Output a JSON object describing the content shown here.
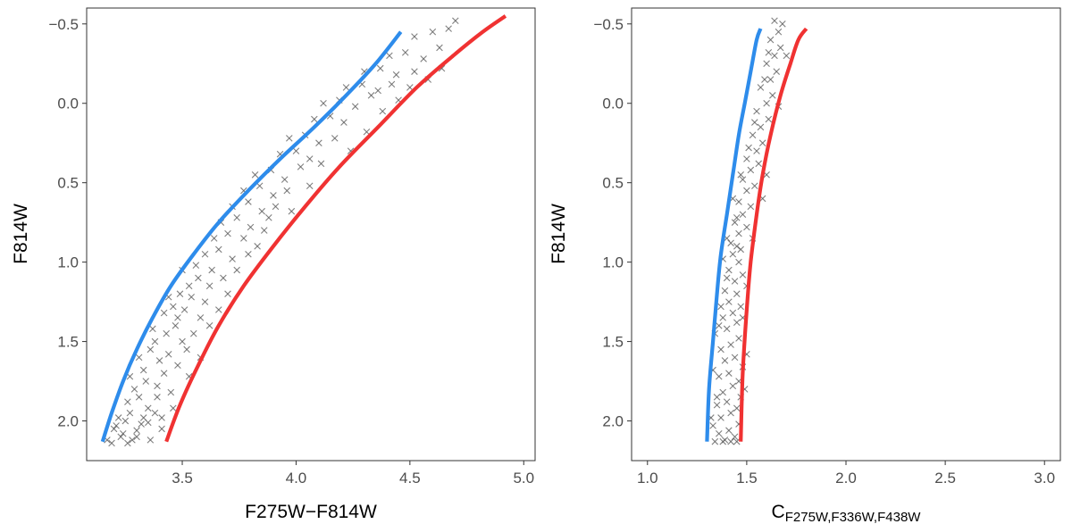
{
  "chart_data": [
    {
      "type": "scatter",
      "xlabel": "F275W−F814W",
      "ylabel": "F814W",
      "xlim": [
        3.08,
        5.05
      ],
      "ylim": [
        -0.6,
        2.25
      ],
      "y_reversed": true,
      "x_ticks": [
        "3.5",
        "4.0",
        "4.5",
        "5.0"
      ],
      "x_tick_values": [
        3.5,
        4.0,
        4.5,
        5.0
      ],
      "y_ticks": [
        "−0.5",
        "0.0",
        "0.5",
        "1.0",
        "1.5",
        "2.0"
      ],
      "y_tick_values": [
        -0.5,
        0.0,
        0.5,
        1.0,
        1.5,
        2.0
      ],
      "series": [
        {
          "name": "blue fiducial",
          "color": "#2e8ceb",
          "kind": "line",
          "x": [
            3.15,
            3.19,
            3.24,
            3.3,
            3.37,
            3.45,
            3.55,
            3.66,
            3.79,
            3.93,
            4.08,
            4.22,
            4.35,
            4.46
          ],
          "y": [
            2.13,
            1.95,
            1.75,
            1.55,
            1.35,
            1.15,
            0.95,
            0.75,
            0.55,
            0.35,
            0.15,
            -0.05,
            -0.25,
            -0.45
          ]
        },
        {
          "name": "red fiducial",
          "color": "#f03232",
          "kind": "line",
          "x": [
            3.43,
            3.49,
            3.57,
            3.66,
            3.77,
            3.9,
            4.04,
            4.19,
            4.36,
            4.53,
            4.69,
            4.82,
            4.92
          ],
          "y": [
            2.13,
            1.9,
            1.65,
            1.4,
            1.15,
            0.9,
            0.65,
            0.4,
            0.15,
            -0.1,
            -0.3,
            -0.45,
            -0.55
          ]
        },
        {
          "name": "stars",
          "color": "#555555",
          "kind": "points",
          "points": [
            [
              3.17,
              2.12
            ],
            [
              3.2,
              2.05
            ],
            [
              3.23,
              2.1
            ],
            [
              3.25,
              2.0
            ],
            [
              3.27,
              1.95
            ],
            [
              3.3,
              2.1
            ],
            [
              3.22,
              1.98
            ],
            [
              3.28,
              2.12
            ],
            [
              3.32,
              2.02
            ],
            [
              3.35,
              1.92
            ],
            [
              3.26,
              1.88
            ],
            [
              3.31,
              1.85
            ],
            [
              3.38,
              1.95
            ],
            [
              3.41,
              2.05
            ],
            [
              3.36,
              2.12
            ],
            [
              3.24,
              2.08
            ],
            [
              3.29,
              1.8
            ],
            [
              3.34,
              1.75
            ],
            [
              3.27,
              1.72
            ],
            [
              3.39,
              1.78
            ],
            [
              3.42,
              1.7
            ],
            [
              3.45,
              1.82
            ],
            [
              3.33,
              1.68
            ],
            [
              3.31,
              1.6
            ],
            [
              3.36,
              1.55
            ],
            [
              3.4,
              1.62
            ],
            [
              3.44,
              1.58
            ],
            [
              3.48,
              1.65
            ],
            [
              3.52,
              1.55
            ],
            [
              3.38,
              1.5
            ],
            [
              3.43,
              1.45
            ],
            [
              3.37,
              1.42
            ],
            [
              3.47,
              1.4
            ],
            [
              3.5,
              1.5
            ],
            [
              3.55,
              1.45
            ],
            [
              3.42,
              1.32
            ],
            [
              3.46,
              1.28
            ],
            [
              3.51,
              1.3
            ],
            [
              3.58,
              1.35
            ],
            [
              3.44,
              1.22
            ],
            [
              3.49,
              1.2
            ],
            [
              3.54,
              1.22
            ],
            [
              3.6,
              1.25
            ],
            [
              3.53,
              1.15
            ],
            [
              3.57,
              1.1
            ],
            [
              3.62,
              1.15
            ],
            [
              3.5,
              1.05
            ],
            [
              3.56,
              1.02
            ],
            [
              3.63,
              1.05
            ],
            [
              3.68,
              1.1
            ],
            [
              3.6,
              0.95
            ],
            [
              3.66,
              0.92
            ],
            [
              3.72,
              0.98
            ],
            [
              3.64,
              0.85
            ],
            [
              3.7,
              0.82
            ],
            [
              3.77,
              0.85
            ],
            [
              3.67,
              0.75
            ],
            [
              3.74,
              0.72
            ],
            [
              3.8,
              0.78
            ],
            [
              3.86,
              0.8
            ],
            [
              3.72,
              0.65
            ],
            [
              3.79,
              0.62
            ],
            [
              3.85,
              0.68
            ],
            [
              3.91,
              0.65
            ],
            [
              3.77,
              0.55
            ],
            [
              3.84,
              0.52
            ],
            [
              3.9,
              0.58
            ],
            [
              3.96,
              0.55
            ],
            [
              3.82,
              0.45
            ],
            [
              3.89,
              0.42
            ],
            [
              3.95,
              0.48
            ],
            [
              4.02,
              0.4
            ],
            [
              3.93,
              0.32
            ],
            [
              4.0,
              0.3
            ],
            [
              4.06,
              0.35
            ],
            [
              3.97,
              0.22
            ],
            [
              4.04,
              0.2
            ],
            [
              4.1,
              0.25
            ],
            [
              4.17,
              0.22
            ],
            [
              4.08,
              0.1
            ],
            [
              4.15,
              0.08
            ],
            [
              4.21,
              0.12
            ],
            [
              4.12,
              0.0
            ],
            [
              4.19,
              -0.02
            ],
            [
              4.26,
              0.02
            ],
            [
              4.33,
              -0.05
            ],
            [
              4.22,
              -0.1
            ],
            [
              4.29,
              -0.12
            ],
            [
              4.36,
              -0.08
            ],
            [
              4.42,
              -0.12
            ],
            [
              4.3,
              -0.2
            ],
            [
              4.37,
              -0.22
            ],
            [
              4.44,
              -0.18
            ],
            [
              4.52,
              -0.2
            ],
            [
              4.41,
              -0.3
            ],
            [
              4.48,
              -0.32
            ],
            [
              4.56,
              -0.28
            ],
            [
              4.63,
              -0.35
            ],
            [
              4.52,
              -0.42
            ],
            [
              4.6,
              -0.45
            ],
            [
              4.67,
              -0.47
            ],
            [
              4.7,
              -0.52
            ],
            [
              3.21,
              2.03
            ],
            [
              3.33,
              1.98
            ],
            [
              3.46,
              1.92
            ],
            [
              3.39,
              1.85
            ],
            [
              3.53,
              1.72
            ],
            [
              3.58,
              1.6
            ],
            [
              3.48,
              1.35
            ],
            [
              3.62,
              1.4
            ],
            [
              3.66,
              1.3
            ],
            [
              3.7,
              1.2
            ],
            [
              3.74,
              1.05
            ],
            [
              3.79,
              0.95
            ],
            [
              3.83,
              0.9
            ],
            [
              3.88,
              0.72
            ],
            [
              3.98,
              0.68
            ],
            [
              4.06,
              0.52
            ],
            [
              4.11,
              0.38
            ],
            [
              4.24,
              0.3
            ],
            [
              4.31,
              0.18
            ],
            [
              4.38,
              0.05
            ],
            [
              4.45,
              -0.02
            ],
            [
              4.5,
              -0.1
            ],
            [
              4.58,
              -0.15
            ],
            [
              4.64,
              -0.22
            ],
            [
              3.19,
              2.14
            ],
            [
              3.26,
              2.14
            ],
            [
              3.3,
              2.06
            ],
            [
              3.35,
              2.01
            ],
            [
              3.41,
              1.98
            ]
          ]
        }
      ]
    },
    {
      "type": "scatter",
      "xlabel_main": "C",
      "xlabel_sub": "F275W,F336W,F438W",
      "ylabel": "F814W",
      "xlim": [
        0.92,
        3.08
      ],
      "ylim": [
        -0.6,
        2.25
      ],
      "y_reversed": true,
      "x_ticks": [
        "1.0",
        "1.5",
        "2.0",
        "2.5",
        "3.0"
      ],
      "x_tick_values": [
        1.0,
        1.5,
        2.0,
        2.5,
        3.0
      ],
      "y_ticks": [
        "−0.5",
        "0.0",
        "0.5",
        "1.0",
        "1.5",
        "2.0"
      ],
      "y_tick_values": [
        -0.5,
        0.0,
        0.5,
        1.0,
        1.5,
        2.0
      ],
      "series": [
        {
          "name": "blue fiducial",
          "color": "#2e8ceb",
          "kind": "line",
          "x": [
            1.3,
            1.31,
            1.33,
            1.35,
            1.37,
            1.4,
            1.43,
            1.46,
            1.49,
            1.52,
            1.55,
            1.57
          ],
          "y": [
            2.13,
            1.8,
            1.5,
            1.2,
            0.95,
            0.7,
            0.45,
            0.2,
            0.0,
            -0.2,
            -0.4,
            -0.47
          ]
        },
        {
          "name": "red fiducial",
          "color": "#f03232",
          "kind": "line",
          "x": [
            1.47,
            1.48,
            1.5,
            1.52,
            1.55,
            1.58,
            1.62,
            1.67,
            1.72,
            1.76,
            1.8
          ],
          "y": [
            2.13,
            1.7,
            1.3,
            1.0,
            0.7,
            0.45,
            0.2,
            -0.05,
            -0.25,
            -0.4,
            -0.47
          ]
        },
        {
          "name": "stars",
          "color": "#555555",
          "kind": "points",
          "points": [
            [
              1.33,
              2.03
            ],
            [
              1.36,
              2.08
            ],
            [
              1.39,
              2.12
            ],
            [
              1.41,
              2.06
            ],
            [
              1.44,
              2.1
            ],
            [
              1.37,
              1.98
            ],
            [
              1.42,
              1.95
            ],
            [
              1.46,
              2.02
            ],
            [
              1.35,
              1.9
            ],
            [
              1.4,
              1.88
            ],
            [
              1.45,
              1.92
            ],
            [
              1.38,
              1.82
            ],
            [
              1.43,
              1.78
            ],
            [
              1.47,
              1.85
            ],
            [
              1.36,
              1.72
            ],
            [
              1.41,
              1.7
            ],
            [
              1.46,
              1.75
            ],
            [
              1.39,
              1.62
            ],
            [
              1.44,
              1.6
            ],
            [
              1.48,
              1.66
            ],
            [
              1.37,
              1.55
            ],
            [
              1.42,
              1.52
            ],
            [
              1.46,
              1.48
            ],
            [
              1.34,
              1.45
            ],
            [
              1.4,
              1.42
            ],
            [
              1.45,
              1.38
            ],
            [
              1.38,
              1.35
            ],
            [
              1.43,
              1.32
            ],
            [
              1.47,
              1.28
            ],
            [
              1.41,
              1.25
            ],
            [
              1.45,
              1.2
            ],
            [
              1.39,
              1.18
            ],
            [
              1.44,
              1.12
            ],
            [
              1.48,
              1.08
            ],
            [
              1.41,
              1.05
            ],
            [
              1.46,
              1.0
            ],
            [
              1.43,
              0.95
            ],
            [
              1.47,
              0.92
            ],
            [
              1.42,
              0.88
            ],
            [
              1.46,
              0.82
            ],
            [
              1.5,
              0.78
            ],
            [
              1.44,
              0.75
            ],
            [
              1.48,
              0.7
            ],
            [
              1.52,
              0.65
            ],
            [
              1.46,
              0.62
            ],
            [
              1.5,
              0.55
            ],
            [
              1.54,
              0.52
            ],
            [
              1.48,
              0.48
            ],
            [
              1.52,
              0.42
            ],
            [
              1.56,
              0.38
            ],
            [
              1.5,
              0.35
            ],
            [
              1.55,
              0.3
            ],
            [
              1.58,
              0.25
            ],
            [
              1.53,
              0.2
            ],
            [
              1.57,
              0.15
            ],
            [
              1.61,
              0.1
            ],
            [
              1.55,
              0.05
            ],
            [
              1.6,
              0.0
            ],
            [
              1.63,
              -0.05
            ],
            [
              1.57,
              -0.1
            ],
            [
              1.62,
              -0.15
            ],
            [
              1.65,
              -0.2
            ],
            [
              1.6,
              -0.25
            ],
            [
              1.64,
              -0.3
            ],
            [
              1.67,
              -0.35
            ],
            [
              1.62,
              -0.4
            ],
            [
              1.66,
              -0.45
            ],
            [
              1.68,
              -0.5
            ],
            [
              1.64,
              -0.52
            ],
            [
              1.34,
              2.13
            ],
            [
              1.38,
              2.13
            ],
            [
              1.42,
              2.13
            ],
            [
              1.45,
              2.13
            ],
            [
              1.32,
              1.98
            ],
            [
              1.35,
              1.85
            ],
            [
              1.49,
              1.8
            ],
            [
              1.33,
              1.68
            ],
            [
              1.5,
              1.58
            ],
            [
              1.36,
              1.4
            ],
            [
              1.48,
              1.35
            ],
            [
              1.37,
              1.28
            ],
            [
              1.5,
              1.15
            ],
            [
              1.4,
              1.1
            ],
            [
              1.38,
              0.98
            ],
            [
              1.45,
              0.9
            ],
            [
              1.4,
              0.85
            ],
            [
              1.53,
              0.85
            ],
            [
              1.45,
              0.72
            ],
            [
              1.43,
              0.6
            ],
            [
              1.47,
              0.45
            ],
            [
              1.51,
              0.28
            ],
            [
              1.6,
              0.45
            ],
            [
              1.58,
              0.6
            ],
            [
              1.54,
              0.12
            ],
            [
              1.66,
              0.02
            ],
            [
              1.59,
              -0.15
            ],
            [
              1.7,
              -0.3
            ],
            [
              1.61,
              -0.32
            ]
          ]
        }
      ]
    }
  ]
}
